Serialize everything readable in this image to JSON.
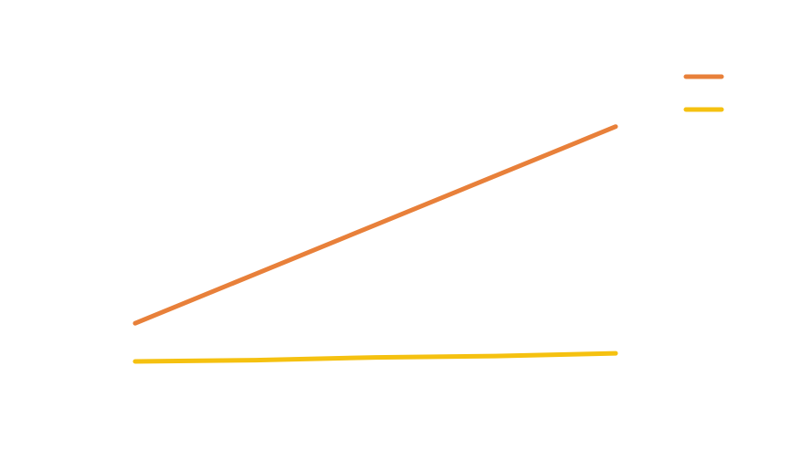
{
  "chart_data": {
    "type": "line",
    "title": "",
    "xlabel": "",
    "ylabel": "",
    "grid": false,
    "legend_position": "top-right",
    "x": [
      0,
      1,
      2,
      3,
      4
    ],
    "ylim": [
      0,
      25
    ],
    "series": [
      {
        "color": "#E8803A",
        "values": [
          4.0,
          7.6,
          11.2,
          14.8,
          18.4
        ]
      },
      {
        "color": "#F5C110",
        "values": [
          1.2,
          1.3,
          1.5,
          1.6,
          1.8
        ]
      }
    ]
  }
}
